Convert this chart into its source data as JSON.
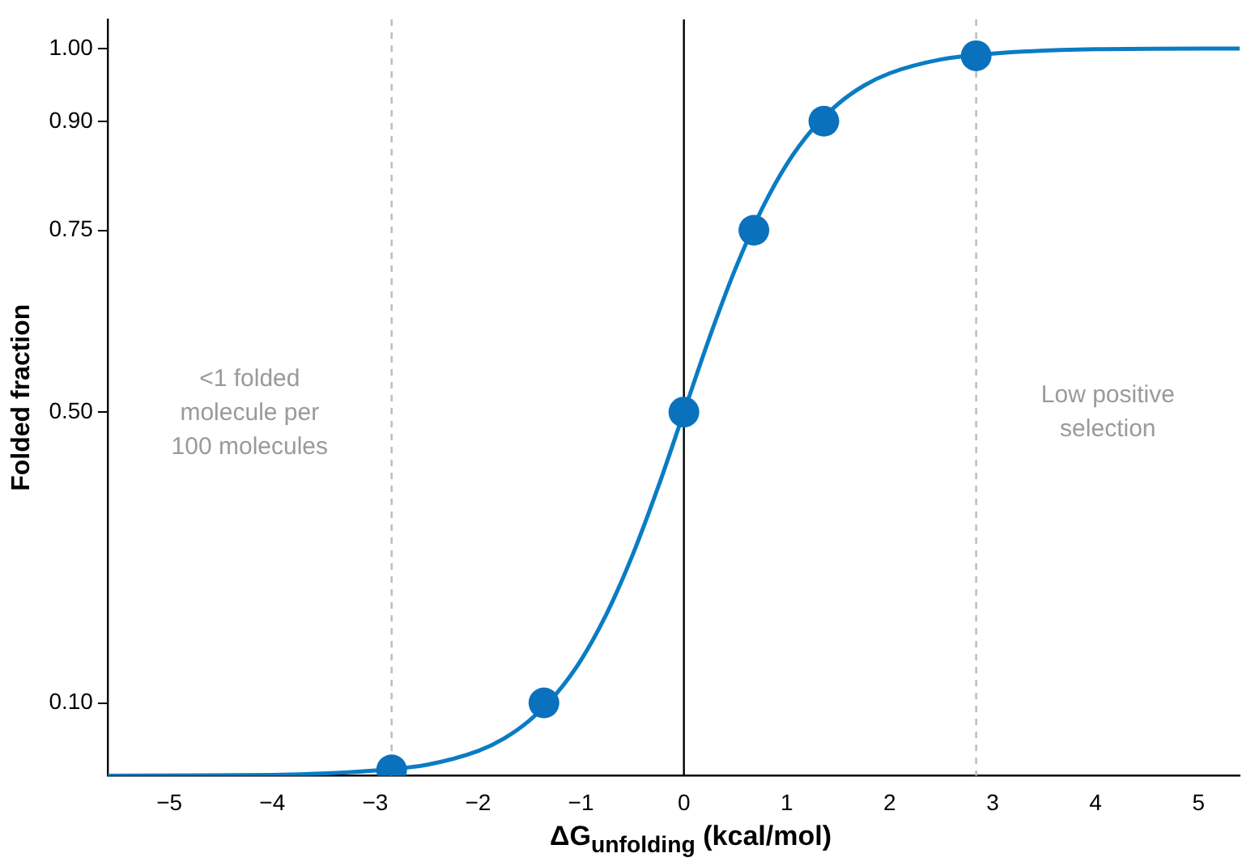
{
  "chart_data": {
    "type": "line",
    "xlabel": "ΔG$_{unfolding}$ (kcal/mol)",
    "ylabel": "Folded fraction",
    "xlim": [
      -5.6,
      5.4
    ],
    "ylim": [
      0,
      1.04
    ],
    "xticks": [
      {
        "value": -5,
        "label": "−5"
      },
      {
        "value": -4,
        "label": "−4"
      },
      {
        "value": -3,
        "label": "−3"
      },
      {
        "value": -2,
        "label": "−2"
      },
      {
        "value": -1,
        "label": "−1"
      },
      0,
      1,
      2,
      3,
      4,
      5
    ],
    "yticks": [
      {
        "value": 0.1,
        "label": "0.10"
      },
      {
        "value": 0.5,
        "label": "0.50"
      },
      {
        "value": 0.75,
        "label": "0.75"
      },
      {
        "value": 0.9,
        "label": "0.90"
      },
      {
        "value": 1,
        "label": "1.00"
      }
    ],
    "grid": false,
    "legend": false,
    "line_style": "solid",
    "series": [
      {
        "type": "line",
        "color": "#0a7cc4",
        "marker": "none",
        "x": [
          -5.6,
          -4,
          -3,
          -2.5,
          -2,
          -1.75,
          -1.5,
          -1.25,
          -1,
          -0.75,
          -0.5,
          -0.25,
          0,
          0.25,
          0.5,
          0.75,
          1,
          1.25,
          1.5,
          1.75,
          2,
          2.5,
          3,
          4,
          5.4
        ],
        "values": [
          0,
          0.001,
          0.007,
          0.015,
          0.034,
          0.051,
          0.076,
          0.111,
          0.159,
          0.223,
          0.303,
          0.397,
          0.5,
          0.603,
          0.697,
          0.777,
          0.841,
          0.889,
          0.924,
          0.949,
          0.966,
          0.985,
          0.993,
          0.999,
          1
        ]
      },
      {
        "type": "scatter",
        "color": "#0a72bd",
        "marker": "circle",
        "x": [
          -2.84,
          -1.36,
          0,
          0.68,
          1.36,
          2.84
        ],
        "values": [
          0.008,
          0.1,
          0.5,
          0.75,
          0.9,
          0.99
        ]
      }
    ],
    "ref_lines": [
      {
        "axis": "x",
        "value": -2.84,
        "color": "#bbbbbb",
        "line_style": "dashed"
      },
      {
        "axis": "x",
        "value": 0,
        "color": "#000000",
        "line_style": "solid"
      },
      {
        "axis": "x",
        "value": 2.84,
        "color": "#bbbbbb",
        "line_style": "dashed"
      }
    ],
    "annotations": [
      "<1 folded\nmolecule per\n100 molecules",
      "Low positive\nselection"
    ]
  }
}
